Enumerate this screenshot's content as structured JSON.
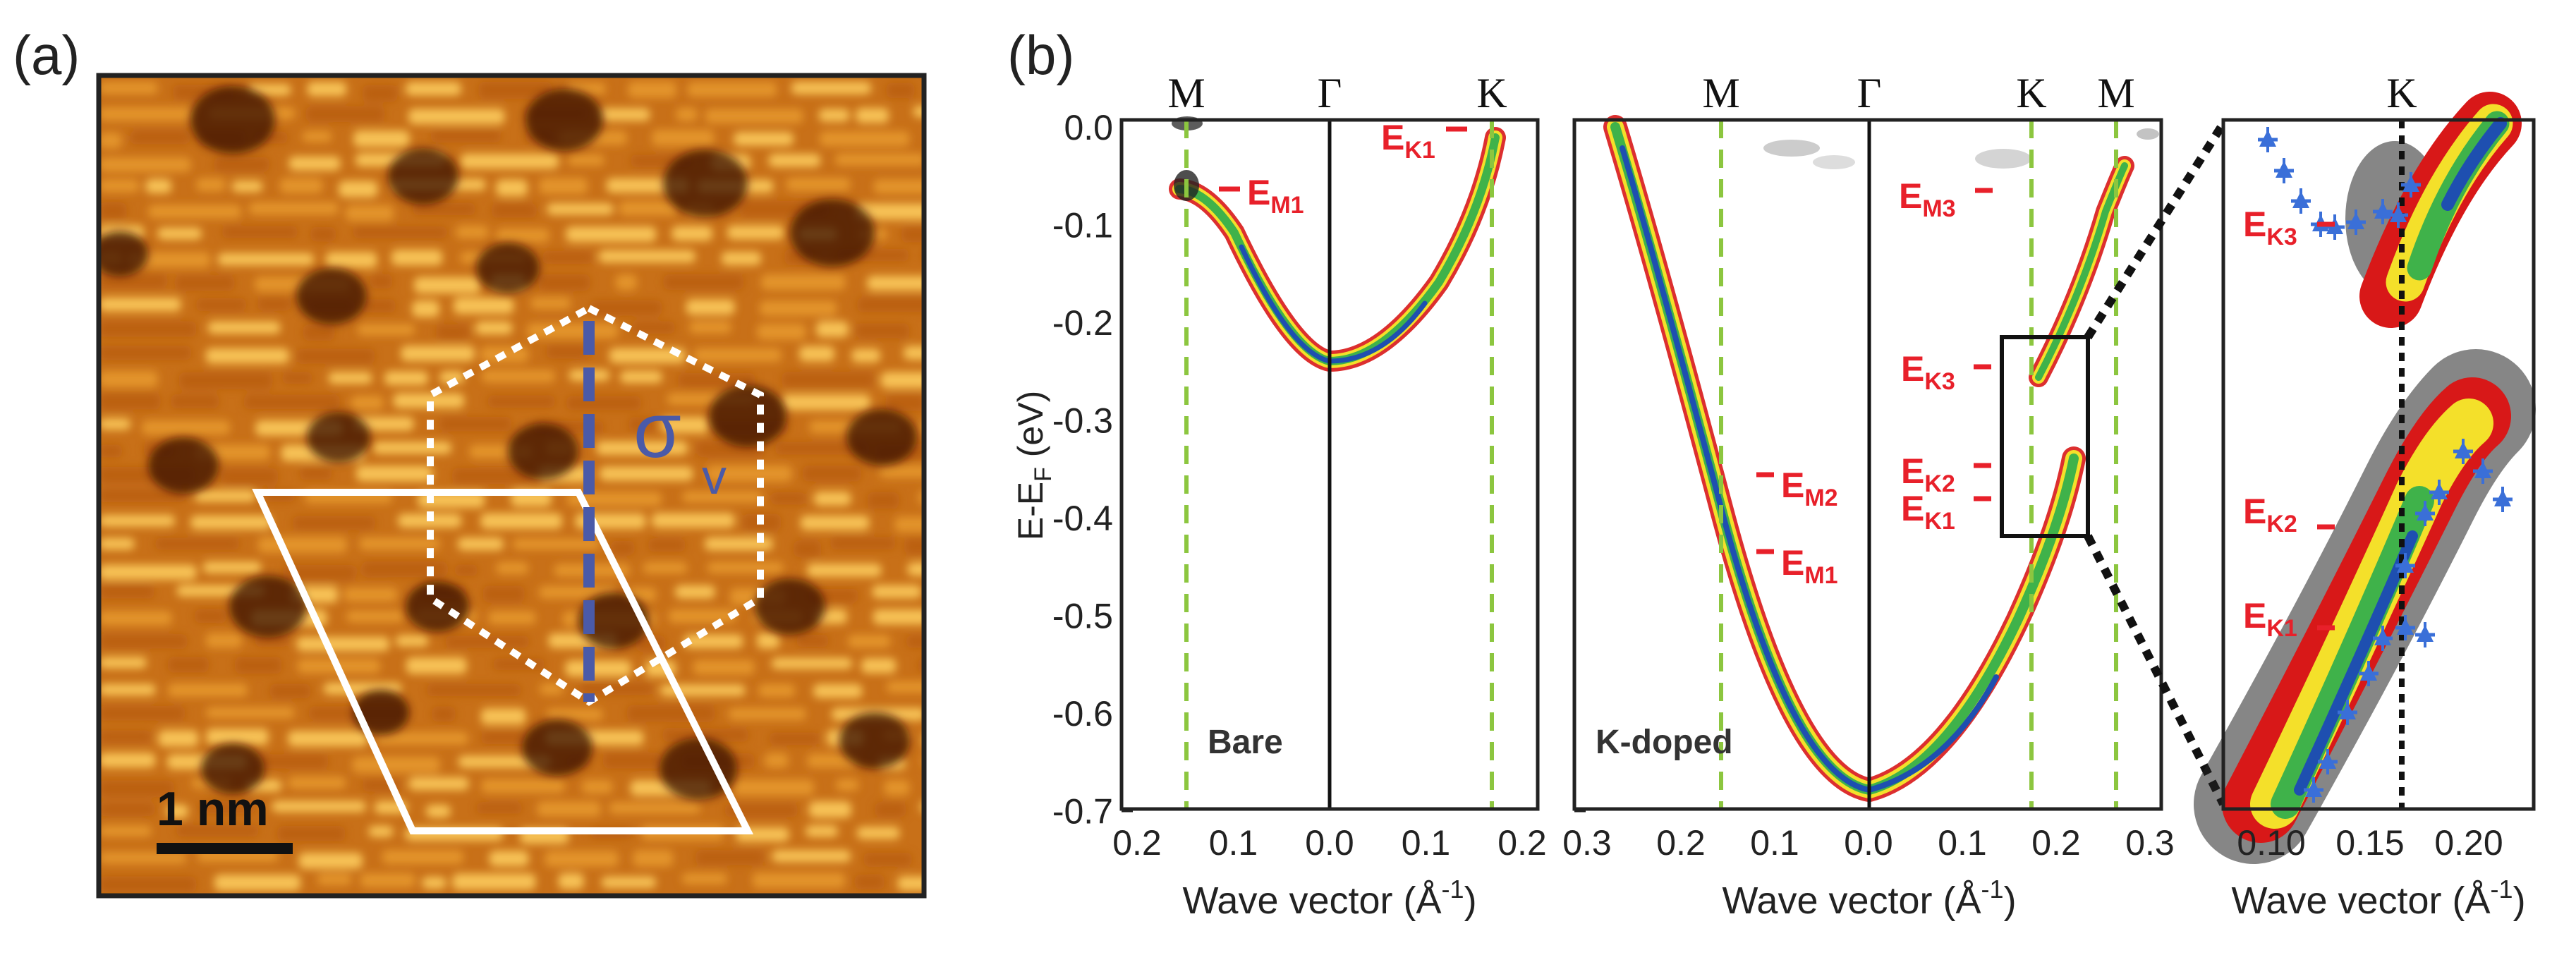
{
  "panel_a": {
    "label": "(a)",
    "scale_bar": "1 nm",
    "sigma_label": "σ",
    "sigma_sub": "v"
  },
  "panel_b": {
    "label": "(b)",
    "y_axis_label": "E-E",
    "y_axis_sub": "F",
    "y_axis_unit": " (eV)",
    "y_ticks": [
      "0.0",
      "-0.1",
      "-0.2",
      "-0.3",
      "-0.4",
      "-0.5",
      "-0.6",
      "-0.7"
    ],
    "subplots": [
      {
        "name": "bare",
        "annotation": "Bare",
        "symmetry_points": [
          "M",
          "Γ",
          "K"
        ],
        "x_ticks": [
          "0.2",
          "0.1",
          "0.0",
          "0.1",
          "0.2"
        ],
        "x_label": "Wave vector (Å",
        "x_label_sup": "-1",
        "x_label_end": ")",
        "energy_labels": [
          {
            "main": "E",
            "sub": "M1"
          },
          {
            "main": "E",
            "sub": "K1"
          }
        ]
      },
      {
        "name": "k-doped",
        "annotation": "K-doped",
        "symmetry_points": [
          "M",
          "Γ",
          "K",
          "M"
        ],
        "x_ticks": [
          "0.3",
          "0.2",
          "0.1",
          "0.0",
          "0.1",
          "0.2",
          "0.3"
        ],
        "x_label": "Wave vector (Å",
        "x_label_sup": "-1",
        "x_label_end": ")",
        "energy_labels": [
          {
            "main": "E",
            "sub": "M3"
          },
          {
            "main": "E",
            "sub": "K3"
          },
          {
            "main": "E",
            "sub": "K2"
          },
          {
            "main": "E",
            "sub": "K1"
          },
          {
            "main": "E",
            "sub": "M2"
          },
          {
            "main": "E",
            "sub": "M1"
          }
        ]
      },
      {
        "name": "zoom",
        "symmetry_points": [
          "K"
        ],
        "x_ticks": [
          "0.10",
          "0.15",
          "0.20"
        ],
        "x_label": "Wave vector (Å",
        "x_label_sup": "-1",
        "x_label_end": ")",
        "energy_labels": [
          {
            "main": "E",
            "sub": "K3"
          },
          {
            "main": "E",
            "sub": "K2"
          },
          {
            "main": "E",
            "sub": "K1"
          }
        ]
      }
    ]
  },
  "colors": {
    "stm_base": "#c87018",
    "stm_bright": "#ffd060",
    "stm_dark": "#3a1204",
    "band_blue": "#1e4fb0",
    "band_green": "#3fb24a",
    "band_yellow": "#f4e02a",
    "band_red": "#d81818",
    "energy_label": "#e8202a",
    "symmetry_dash": "#8cc63f",
    "sigma_blue": "#4a5aa8",
    "marker_blue": "#3a6fd8"
  }
}
